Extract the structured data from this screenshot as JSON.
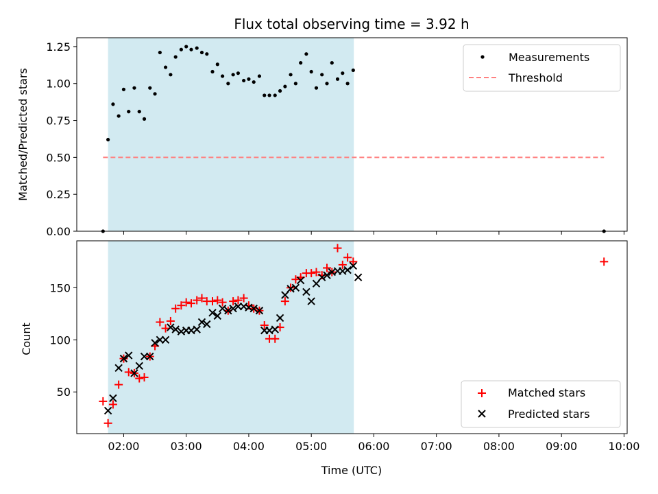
{
  "chart_data": [
    {
      "type": "scatter",
      "title": "Flux total observing time = 3.92 h",
      "xlabel": "",
      "ylabel": "Matched/Predicted stars",
      "xlim": [
        1.25,
        10.05
      ],
      "ylim": [
        0,
        1.31
      ],
      "ytick_labels": [
        "0.00",
        "0.25",
        "0.50",
        "0.75",
        "1.00",
        "1.25"
      ],
      "ytick_values": [
        0,
        0.25,
        0.5,
        0.75,
        1.0,
        1.25
      ],
      "shaded_span": [
        1.75,
        5.68
      ],
      "shade_color": "#add8e6",
      "legend_position": "upper right",
      "series": [
        {
          "name": "Measurements",
          "marker": "dot",
          "color": "#000000",
          "points": [
            [
              1.67,
              0.0
            ],
            [
              1.75,
              0.62
            ],
            [
              1.83,
              0.86
            ],
            [
              1.92,
              0.78
            ],
            [
              2.0,
              0.96
            ],
            [
              2.08,
              0.81
            ],
            [
              2.17,
              0.97
            ],
            [
              2.25,
              0.81
            ],
            [
              2.33,
              0.76
            ],
            [
              2.42,
              0.97
            ],
            [
              2.5,
              0.93
            ],
            [
              2.58,
              1.21
            ],
            [
              2.67,
              1.11
            ],
            [
              2.75,
              1.06
            ],
            [
              2.83,
              1.18
            ],
            [
              2.92,
              1.23
            ],
            [
              3.0,
              1.25
            ],
            [
              3.08,
              1.23
            ],
            [
              3.17,
              1.24
            ],
            [
              3.25,
              1.21
            ],
            [
              3.33,
              1.2
            ],
            [
              3.42,
              1.08
            ],
            [
              3.5,
              1.13
            ],
            [
              3.58,
              1.05
            ],
            [
              3.67,
              1.0
            ],
            [
              3.75,
              1.06
            ],
            [
              3.83,
              1.07
            ],
            [
              3.92,
              1.02
            ],
            [
              4.0,
              1.03
            ],
            [
              4.08,
              1.01
            ],
            [
              4.17,
              1.05
            ],
            [
              4.25,
              0.92
            ],
            [
              4.33,
              0.92
            ],
            [
              4.42,
              0.92
            ],
            [
              4.5,
              0.95
            ],
            [
              4.58,
              0.98
            ],
            [
              4.67,
              1.06
            ],
            [
              4.75,
              1.0
            ],
            [
              4.83,
              1.14
            ],
            [
              4.92,
              1.2
            ],
            [
              5.0,
              1.08
            ],
            [
              5.08,
              0.97
            ],
            [
              5.17,
              1.06
            ],
            [
              5.25,
              1.0
            ],
            [
              5.33,
              1.14
            ],
            [
              5.42,
              1.03
            ],
            [
              5.5,
              1.07
            ],
            [
              5.58,
              1.0
            ],
            [
              5.67,
              1.09
            ],
            [
              9.68,
              0.0
            ]
          ]
        },
        {
          "name": "Threshold",
          "marker": "dashed-line",
          "color": "#ff8080",
          "points": [
            [
              1.67,
              0.5
            ],
            [
              9.68,
              0.5
            ]
          ]
        }
      ]
    },
    {
      "type": "scatter",
      "title": "",
      "xlabel": "Time (UTC)",
      "ylabel": "Count",
      "xlim": [
        1.25,
        10.05
      ],
      "ylim": [
        10,
        195
      ],
      "ytick_labels": [
        "50",
        "100",
        "150"
      ],
      "ytick_values": [
        50,
        100,
        150
      ],
      "xtick_labels": [
        "02:00",
        "03:00",
        "04:00",
        "05:00",
        "06:00",
        "07:00",
        "08:00",
        "09:00",
        "10:00"
      ],
      "xtick_values": [
        2,
        3,
        4,
        5,
        6,
        7,
        8,
        9,
        10
      ],
      "shaded_span": [
        1.75,
        5.68
      ],
      "shade_color": "#add8e6",
      "legend_position": "lower right",
      "series": [
        {
          "name": "Matched stars",
          "marker": "plus",
          "color": "#ff0000",
          "points": [
            [
              1.67,
              41
            ],
            [
              1.75,
              20
            ],
            [
              1.83,
              38
            ],
            [
              1.92,
              57
            ],
            [
              2.0,
              82
            ],
            [
              2.08,
              69
            ],
            [
              2.17,
              68
            ],
            [
              2.25,
              63
            ],
            [
              2.33,
              64
            ],
            [
              2.42,
              84
            ],
            [
              2.5,
              94
            ],
            [
              2.58,
              117
            ],
            [
              2.67,
              111
            ],
            [
              2.75,
              118
            ],
            [
              2.83,
              130
            ],
            [
              2.92,
              133
            ],
            [
              3.0,
              136
            ],
            [
              3.08,
              135
            ],
            [
              3.17,
              138
            ],
            [
              3.25,
              140
            ],
            [
              3.33,
              137
            ],
            [
              3.42,
              137
            ],
            [
              3.5,
              138
            ],
            [
              3.58,
              136
            ],
            [
              3.67,
              128
            ],
            [
              3.75,
              137
            ],
            [
              3.83,
              138
            ],
            [
              3.92,
              140
            ],
            [
              4.0,
              133
            ],
            [
              4.08,
              130
            ],
            [
              4.17,
              128
            ],
            [
              4.25,
              114
            ],
            [
              4.33,
              101
            ],
            [
              4.42,
              101
            ],
            [
              4.5,
              112
            ],
            [
              4.58,
              137
            ],
            [
              4.67,
              150
            ],
            [
              4.75,
              158
            ],
            [
              4.83,
              160
            ],
            [
              4.92,
              164
            ],
            [
              5.0,
              164
            ],
            [
              5.08,
              165
            ],
            [
              5.17,
              162
            ],
            [
              5.25,
              169
            ],
            [
              5.33,
              165
            ],
            [
              5.42,
              188
            ],
            [
              5.5,
              172
            ],
            [
              5.58,
              179
            ],
            [
              5.67,
              175
            ],
            [
              9.68,
              175
            ]
          ]
        },
        {
          "name": "Predicted stars",
          "marker": "x",
          "color": "#000000",
          "points": [
            [
              1.75,
              32
            ],
            [
              1.83,
              44
            ],
            [
              1.92,
              73
            ],
            [
              2.0,
              82
            ],
            [
              2.08,
              85
            ],
            [
              2.17,
              68
            ],
            [
              2.25,
              75
            ],
            [
              2.33,
              84
            ],
            [
              2.42,
              84
            ],
            [
              2.5,
              97
            ],
            [
              2.58,
              100
            ],
            [
              2.67,
              100
            ],
            [
              2.75,
              112
            ],
            [
              2.83,
              110
            ],
            [
              2.92,
              108
            ],
            [
              3.0,
              109
            ],
            [
              3.08,
              109
            ],
            [
              3.17,
              110
            ],
            [
              3.25,
              117
            ],
            [
              3.33,
              115
            ],
            [
              3.42,
              126
            ],
            [
              3.5,
              123
            ],
            [
              3.58,
              130
            ],
            [
              3.67,
              128
            ],
            [
              3.75,
              130
            ],
            [
              3.83,
              132
            ],
            [
              3.92,
              132
            ],
            [
              4.0,
              131
            ],
            [
              4.08,
              130
            ],
            [
              4.17,
              128
            ],
            [
              4.25,
              109
            ],
            [
              4.33,
              109
            ],
            [
              4.42,
              110
            ],
            [
              4.5,
              121
            ],
            [
              4.58,
              143
            ],
            [
              4.67,
              149
            ],
            [
              4.75,
              150
            ],
            [
              4.83,
              157
            ],
            [
              4.92,
              146
            ],
            [
              5.0,
              137
            ],
            [
              5.08,
              154
            ],
            [
              5.17,
              160
            ],
            [
              5.25,
              162
            ],
            [
              5.33,
              165
            ],
            [
              5.42,
              166
            ],
            [
              5.5,
              166
            ],
            [
              5.58,
              167
            ],
            [
              5.67,
              171
            ],
            [
              5.75,
              160
            ]
          ]
        }
      ]
    }
  ]
}
